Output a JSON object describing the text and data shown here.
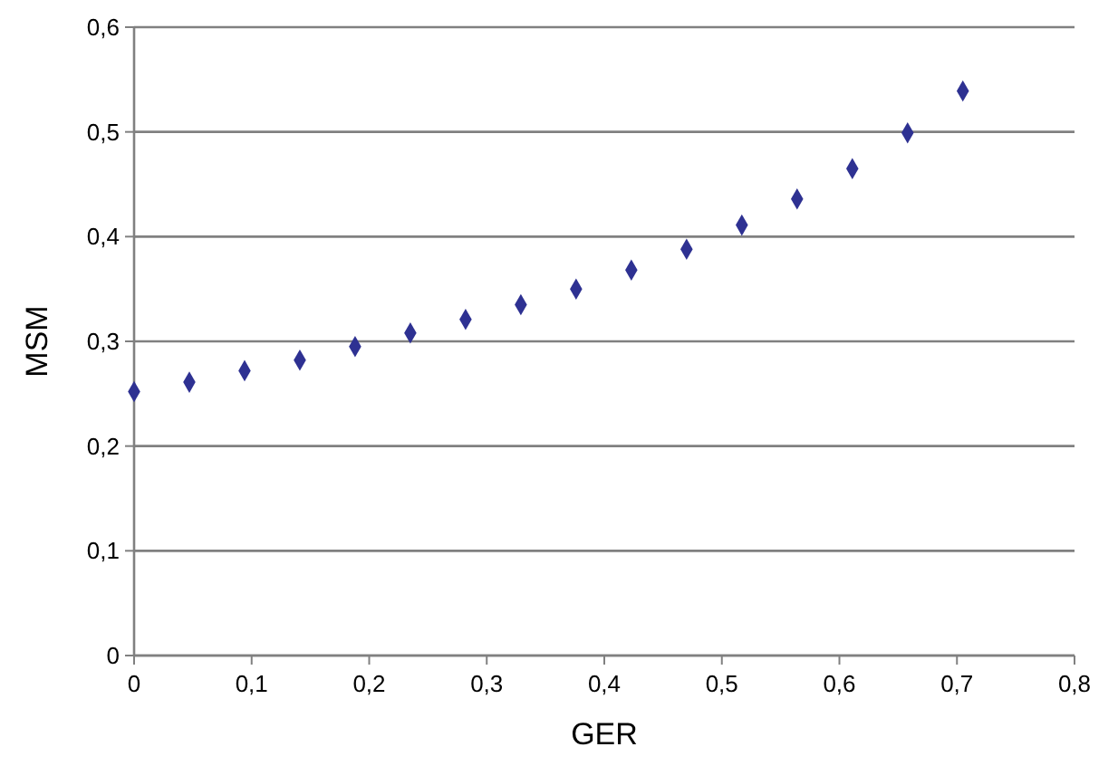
{
  "chart_data": {
    "type": "scatter",
    "xlabel": "GER",
    "ylabel": "MSM",
    "x": [
      0,
      0.047,
      0.094,
      0.141,
      0.188,
      0.235,
      0.282,
      0.329,
      0.376,
      0.423,
      0.47,
      0.517,
      0.564,
      0.611,
      0.658,
      0.705
    ],
    "series": [
      {
        "color": "#2e3192",
        "values": [
          0.252,
          0.261,
          0.272,
          0.282,
          0.295,
          0.308,
          0.321,
          0.335,
          0.35,
          0.368,
          0.388,
          0.411,
          0.436,
          0.465,
          0.499,
          0.539
        ]
      }
    ],
    "xlim": [
      0,
      0.8
    ],
    "ylim": [
      0,
      0.6
    ],
    "xticks": [
      {
        "value": 0,
        "label": "0"
      },
      {
        "value": 0.1,
        "label": "0,1"
      },
      {
        "value": 0.2,
        "label": "0,2"
      },
      {
        "value": 0.3,
        "label": "0,3"
      },
      {
        "value": 0.4,
        "label": "0,4"
      },
      {
        "value": 0.5,
        "label": "0,5"
      },
      {
        "value": 0.6,
        "label": "0,6"
      },
      {
        "value": 0.7,
        "label": "0,7"
      },
      {
        "value": 0.8,
        "label": "0,8"
      }
    ],
    "yticks": [
      {
        "value": 0,
        "label": "0"
      },
      {
        "value": 0.1,
        "label": "0,1"
      },
      {
        "value": 0.2,
        "label": "0,2"
      },
      {
        "value": 0.3,
        "label": "0,3"
      },
      {
        "value": 0.4,
        "label": "0,4"
      },
      {
        "value": 0.5,
        "label": "0,5"
      },
      {
        "value": 0.6,
        "label": "0,6"
      }
    ],
    "grid": "y",
    "marker": "diamond"
  }
}
